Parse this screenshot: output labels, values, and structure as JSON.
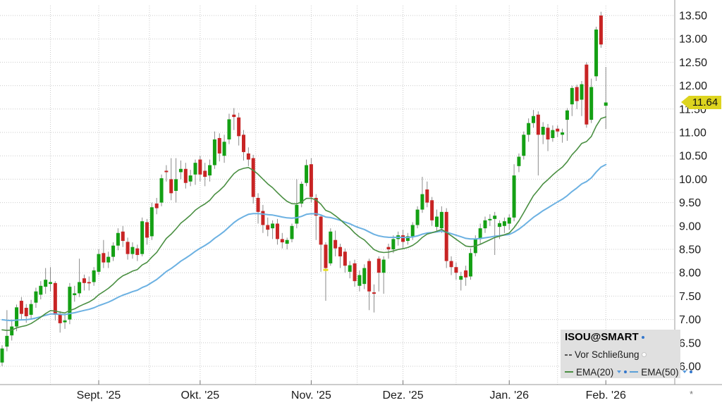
{
  "chart_data": {
    "type": "candlestick",
    "title": "ISOU@SMART",
    "legend": {
      "position": "bottom-right",
      "title": "ISOU@SMART",
      "prev_close_label": "Vor Schließung",
      "ema20_label": "EMA(20)",
      "ema50_label": "EMA(50)"
    },
    "last_close": 11.64,
    "last_close_label": "11.64",
    "footnote": "*",
    "y_axis": {
      "min": 6.0,
      "max": 13.5,
      "step": 0.5,
      "labels": [
        "13.50",
        "13.00",
        "12.50",
        "12.00",
        "11.50",
        "11.00",
        "10.50",
        "10.00",
        "9.50",
        "9.00",
        "8.50",
        "8.00",
        "7.50",
        "7.00",
        "6.50",
        "6.00"
      ]
    },
    "x_ticks": [
      {
        "index": 20,
        "label": "Sept. '25"
      },
      {
        "index": 41,
        "label": "Okt. '25"
      },
      {
        "index": 64,
        "label": "Nov. '25"
      },
      {
        "index": 83,
        "label": "Dez. '25"
      },
      {
        "index": 105,
        "label": "Jan. '26"
      },
      {
        "index": 125,
        "label": "Feb. '26"
      }
    ],
    "x_grid_indices": [
      10,
      20,
      30.5,
      41,
      52.5,
      64,
      73.5,
      83,
      94,
      105,
      115,
      125
    ],
    "candles": [
      [
        6.08,
        6.45,
        6.0,
        6.38
      ],
      [
        6.42,
        7.2,
        6.32,
        6.65
      ],
      [
        6.66,
        7.0,
        6.55,
        6.85
      ],
      [
        6.85,
        7.32,
        6.75,
        7.26
      ],
      [
        7.4,
        7.48,
        7.0,
        7.12
      ],
      [
        7.25,
        7.33,
        6.93,
        7.07
      ],
      [
        7.1,
        7.42,
        7.02,
        7.33
      ],
      [
        7.36,
        7.68,
        7.25,
        7.6
      ],
      [
        7.53,
        7.82,
        7.43,
        7.72
      ],
      [
        7.7,
        8.1,
        7.55,
        7.85
      ],
      [
        7.76,
        8.12,
        7.6,
        7.8
      ],
      [
        7.78,
        7.82,
        6.98,
        7.1
      ],
      [
        7.1,
        7.18,
        6.72,
        6.92
      ],
      [
        6.94,
        7.1,
        6.8,
        6.98
      ],
      [
        7.0,
        7.78,
        6.9,
        7.7
      ],
      [
        7.52,
        7.72,
        7.38,
        7.56
      ],
      [
        7.56,
        8.3,
        7.48,
        7.8
      ],
      [
        7.88,
        7.96,
        7.62,
        7.78
      ],
      [
        7.8,
        7.92,
        7.62,
        7.78
      ],
      [
        7.8,
        8.12,
        7.72,
        8.05
      ],
      [
        8.02,
        8.5,
        7.95,
        8.4
      ],
      [
        8.42,
        8.7,
        8.1,
        8.22
      ],
      [
        8.22,
        8.45,
        8.1,
        8.34
      ],
      [
        8.34,
        8.65,
        8.25,
        8.58
      ],
      [
        8.58,
        8.95,
        8.48,
        8.85
      ],
      [
        8.88,
        9.0,
        8.55,
        8.68
      ],
      [
        8.66,
        8.75,
        8.28,
        8.4
      ],
      [
        8.4,
        8.65,
        8.3,
        8.55
      ],
      [
        8.52,
        8.6,
        8.25,
        8.38
      ],
      [
        8.4,
        9.18,
        8.35,
        9.1
      ],
      [
        9.08,
        9.15,
        8.6,
        8.75
      ],
      [
        8.78,
        9.5,
        8.7,
        9.4
      ],
      [
        9.48,
        9.6,
        9.25,
        9.38
      ],
      [
        9.5,
        10.1,
        9.42,
        10.02
      ],
      [
        10.18,
        10.3,
        9.95,
        10.15
      ],
      [
        10.0,
        10.45,
        9.55,
        9.7
      ],
      [
        9.75,
        10.45,
        9.5,
        10.0
      ],
      [
        10.15,
        10.4,
        10.0,
        10.22
      ],
      [
        10.22,
        10.35,
        9.8,
        9.92
      ],
      [
        9.95,
        10.2,
        9.85,
        10.08
      ],
      [
        10.1,
        10.42,
        9.88,
        10.35
      ],
      [
        10.42,
        10.5,
        9.95,
        10.1
      ],
      [
        10.18,
        10.35,
        9.85,
        10.05
      ],
      [
        10.08,
        10.42,
        9.95,
        10.3
      ],
      [
        10.3,
        11.02,
        10.22,
        10.85
      ],
      [
        10.88,
        10.98,
        10.38,
        10.55
      ],
      [
        10.5,
        10.95,
        10.35,
        10.8
      ],
      [
        10.85,
        11.4,
        10.75,
        11.28
      ],
      [
        11.38,
        11.52,
        11.05,
        11.33
      ],
      [
        11.32,
        11.42,
        10.72,
        10.92
      ],
      [
        10.95,
        11.05,
        10.4,
        10.58
      ],
      [
        10.55,
        10.68,
        10.28,
        10.42
      ],
      [
        10.45,
        10.52,
        9.48,
        9.62
      ],
      [
        9.6,
        9.7,
        9.05,
        9.3
      ],
      [
        9.32,
        9.45,
        8.85,
        9.02
      ],
      [
        9.02,
        9.18,
        8.78,
        8.92
      ],
      [
        8.95,
        9.12,
        8.72,
        9.05
      ],
      [
        9.05,
        9.15,
        8.6,
        8.72
      ],
      [
        8.72,
        8.85,
        8.52,
        8.65
      ],
      [
        8.62,
        8.75,
        8.5,
        8.7
      ],
      [
        8.72,
        9.05,
        8.65,
        9.0
      ],
      [
        9.05,
        10.0,
        8.95,
        9.45
      ],
      [
        9.48,
        9.95,
        9.4,
        9.9
      ],
      [
        9.92,
        10.42,
        9.85,
        10.3
      ],
      [
        10.32,
        10.45,
        9.5,
        9.62
      ],
      [
        9.6,
        9.68,
        8.7,
        9.22
      ],
      [
        9.2,
        9.25,
        8.02,
        8.6
      ],
      [
        8.6,
        8.65,
        7.4,
        8.1
      ],
      [
        8.2,
        8.95,
        8.15,
        8.88
      ],
      [
        8.7,
        8.9,
        8.35,
        8.52
      ],
      [
        8.55,
        8.62,
        8.1,
        8.35
      ],
      [
        8.45,
        8.52,
        8.0,
        8.15
      ],
      [
        8.02,
        8.25,
        7.88,
        8.16
      ],
      [
        8.2,
        8.28,
        7.7,
        7.82
      ],
      [
        7.72,
        8.05,
        7.6,
        7.95
      ],
      [
        7.76,
        8.18,
        7.65,
        8.1
      ],
      [
        8.25,
        8.3,
        7.2,
        7.6
      ],
      [
        7.58,
        7.75,
        7.15,
        7.55
      ],
      [
        8.3,
        8.35,
        7.6,
        8.0
      ],
      [
        8.0,
        8.35,
        7.55,
        8.28
      ],
      [
        8.55,
        8.62,
        8.3,
        8.5
      ],
      [
        8.5,
        8.8,
        8.42,
        8.72
      ],
      [
        8.72,
        8.88,
        8.58,
        8.8
      ],
      [
        8.8,
        8.92,
        8.52,
        8.66
      ],
      [
        8.68,
        8.85,
        8.6,
        8.78
      ],
      [
        8.78,
        9.08,
        8.7,
        9.02
      ],
      [
        9.02,
        9.42,
        8.95,
        9.35
      ],
      [
        9.35,
        10.05,
        9.28,
        9.68
      ],
      [
        9.78,
        9.95,
        9.4,
        9.5
      ],
      [
        9.55,
        9.62,
        9.0,
        9.12
      ],
      [
        8.98,
        9.35,
        8.9,
        9.2
      ],
      [
        8.95,
        9.42,
        8.85,
        9.3
      ],
      [
        9.3,
        9.38,
        8.1,
        8.25
      ],
      [
        8.25,
        8.35,
        7.95,
        8.12
      ],
      [
        8.12,
        8.22,
        7.85,
        8.0
      ],
      [
        7.85,
        8.02,
        7.62,
        7.93
      ],
      [
        8.05,
        8.15,
        7.72,
        7.9
      ],
      [
        7.92,
        8.52,
        7.85,
        8.42
      ],
      [
        8.42,
        8.8,
        8.35,
        8.72
      ],
      [
        8.72,
        9.05,
        8.6,
        8.95
      ],
      [
        8.95,
        9.2,
        8.85,
        9.12
      ],
      [
        9.12,
        9.25,
        9.0,
        9.15
      ],
      [
        9.15,
        9.3,
        8.38,
        9.22
      ],
      [
        8.98,
        9.12,
        8.72,
        9.06
      ],
      [
        9.0,
        9.18,
        8.85,
        9.1
      ],
      [
        9.05,
        9.25,
        8.92,
        9.18
      ],
      [
        9.18,
        10.32,
        9.1,
        10.08
      ],
      [
        10.28,
        10.55,
        10.15,
        10.48
      ],
      [
        10.5,
        11.02,
        10.42,
        10.95
      ],
      [
        10.95,
        11.3,
        10.8,
        11.2
      ],
      [
        11.2,
        11.48,
        11.1,
        11.35
      ],
      [
        11.38,
        11.45,
        10.08,
        10.95
      ],
      [
        10.95,
        11.22,
        10.75,
        11.12
      ],
      [
        11.1,
        11.18,
        10.6,
        10.85
      ],
      [
        10.88,
        11.15,
        10.8,
        11.05
      ],
      [
        11.08,
        11.15,
        10.9,
        11.02
      ],
      [
        10.95,
        11.08,
        10.78,
        11.0
      ],
      [
        11.27,
        11.52,
        10.82,
        11.47
      ],
      [
        11.6,
        12.0,
        11.35,
        11.95
      ],
      [
        11.97,
        12.02,
        11.5,
        11.67
      ],
      [
        11.7,
        12.1,
        11.35,
        12.03
      ],
      [
        12.45,
        12.5,
        11.1,
        11.17
      ],
      [
        11.27,
        12.15,
        11.2,
        11.97
      ],
      [
        12.2,
        13.26,
        12.1,
        13.2
      ],
      [
        13.5,
        13.58,
        12.81,
        12.88
      ],
      [
        11.57,
        12.4,
        11.07,
        11.64
      ]
    ],
    "overlays": [
      {
        "name": "EMA(50)",
        "period": 50,
        "seed": 7.02,
        "color": "#6cb1e2",
        "width": 2.0
      },
      {
        "name": "EMA(20)",
        "period": 20,
        "seed": 6.82,
        "color": "#4a8f42",
        "width": 1.6
      }
    ],
    "event_marker": {
      "index": 67,
      "price": 8.06,
      "color": "#e8df1e"
    },
    "colors": {
      "up": "#14a014",
      "down": "#c82424",
      "wick": "#8a8a8a",
      "grid": "#cbcbcb",
      "axis": "#9a9a9a",
      "text": "#1b1b1b",
      "highlight_bg": "#ddd41f",
      "highlight_text": "#111111",
      "legend_bg": "#e0e0e0"
    }
  }
}
